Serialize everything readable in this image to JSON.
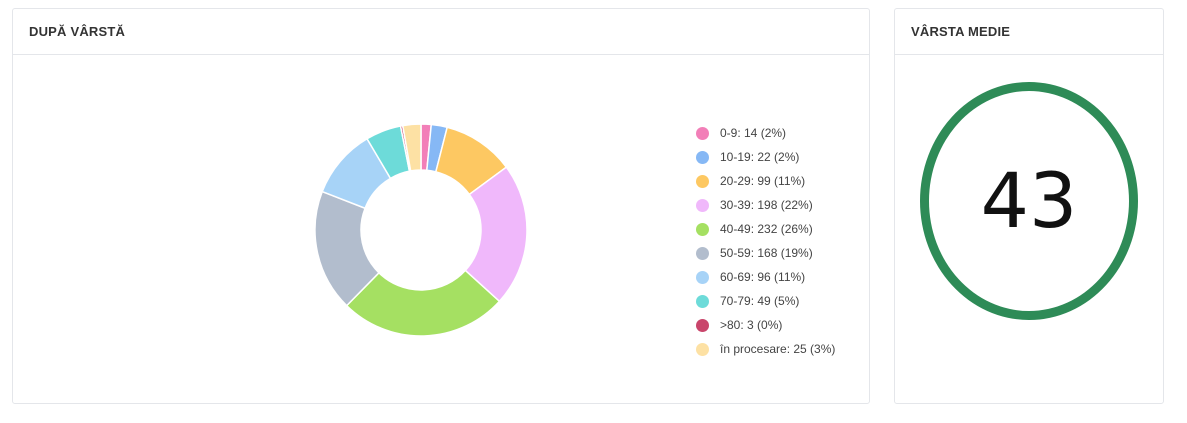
{
  "age_panel": {
    "title": "DUPĂ VÂRSTĂ"
  },
  "avg_panel": {
    "title": "VÂRSTA MEDIE",
    "value": "43",
    "ring_color": "#2e8b57"
  },
  "chart_data": {
    "type": "pie",
    "donut": true,
    "legend_position": "right",
    "categories": [
      "0-9",
      "10-19",
      "20-29",
      "30-39",
      "40-49",
      "50-59",
      "60-69",
      "70-79",
      ">80",
      "în procesare"
    ],
    "values": [
      14,
      22,
      99,
      198,
      232,
      168,
      96,
      49,
      3,
      25
    ],
    "colors": [
      "#f27fb8",
      "#86b8f5",
      "#fdc862",
      "#f0b8fb",
      "#a5e062",
      "#b2bdcd",
      "#a7d3f7",
      "#6ddbd9",
      "#c9456b",
      "#fde1a4"
    ],
    "legend_labels": [
      "0-9: 14 (2%)",
      "10-19: 22 (2%)",
      "20-29: 99 (11%)",
      "30-39: 198 (22%)",
      "40-49: 232 (26%)",
      "50-59: 168 (19%)",
      "60-69: 96 (11%)",
      "70-79: 49 (5%)",
      ">80: 3 (0%)",
      "în procesare: 25 (3%)"
    ]
  }
}
